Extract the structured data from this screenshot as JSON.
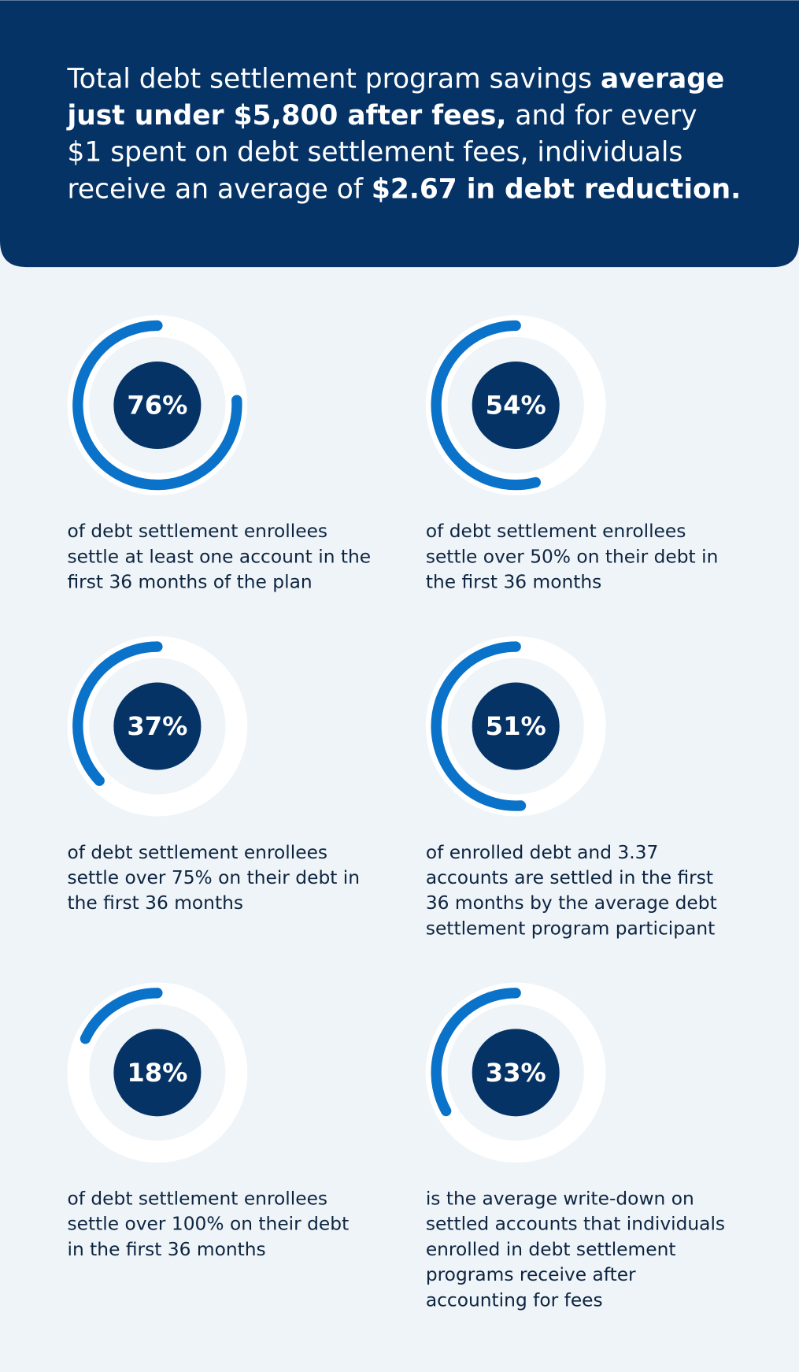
{
  "header": {
    "lines": [
      [
        {
          "text": "Total debt settlement program savings ",
          "bold": false
        },
        {
          "text": "average",
          "bold": true
        }
      ],
      [
        {
          "text": "just under $5,800 after fees,",
          "bold": true
        },
        {
          "text": " and for every",
          "bold": false
        }
      ],
      [
        {
          "text": "$1 spent on debt settlement fees, individuals",
          "bold": false
        }
      ],
      [
        {
          "text": "receive an average of ",
          "bold": false
        },
        {
          "text": "$2.67 in debt reduction.",
          "bold": true
        }
      ]
    ]
  },
  "chart_data": [
    {
      "type": "donut",
      "values": [
        76
      ],
      "value_labels": [
        "76%"
      ],
      "ylim": [
        0,
        100
      ],
      "color": "#0a72c9",
      "caption": [
        "of debt settlement enrollees",
        "settle at least one account in the",
        "first 36 months of the plan"
      ]
    },
    {
      "type": "donut",
      "values": [
        54
      ],
      "value_labels": [
        "54%"
      ],
      "ylim": [
        0,
        100
      ],
      "color": "#0a72c9",
      "caption": [
        "of debt settlement enrollees",
        "settle over 50% on their debt in",
        "the first 36 months"
      ]
    },
    {
      "type": "donut",
      "values": [
        37
      ],
      "value_labels": [
        "37%"
      ],
      "ylim": [
        0,
        100
      ],
      "color": "#0a72c9",
      "caption": [
        "of debt settlement enrollees",
        "settle over 75% on their debt in",
        "the first 36 months"
      ]
    },
    {
      "type": "donut",
      "values": [
        51
      ],
      "value_labels": [
        "51%"
      ],
      "ylim": [
        0,
        100
      ],
      "color": "#0a72c9",
      "caption": [
        "of enrolled debt and 3.37",
        "accounts are settled in the first",
        "36 months by the average debt",
        "settlement program participant"
      ]
    },
    {
      "type": "donut",
      "values": [
        18
      ],
      "value_labels": [
        "18%"
      ],
      "ylim": [
        0,
        100
      ],
      "color": "#0a72c9",
      "caption": [
        "of debt settlement enrollees",
        "settle over 100% on their debt",
        "in the first 36 months"
      ]
    },
    {
      "type": "donut",
      "values": [
        33
      ],
      "value_labels": [
        "33%"
      ],
      "ylim": [
        0,
        100
      ],
      "color": "#0a72c9",
      "caption": [
        "is the average write-down on",
        "settled accounts that individuals",
        "enrolled in debt settlement",
        "programs receive after",
        "accounting for fees"
      ]
    }
  ]
}
